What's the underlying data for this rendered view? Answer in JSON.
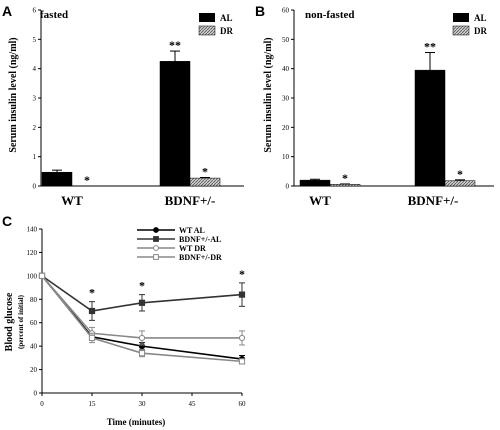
{
  "panels": {
    "a": "A",
    "b": "B",
    "c": "C"
  },
  "chart_data": [
    {
      "type": "bar",
      "panel": "A",
      "condition": "fasted",
      "ylabel": "Serum insulin level (ng/ml)",
      "ylim": [
        0,
        6
      ],
      "yticks": [
        0,
        1,
        2,
        3,
        4,
        5,
        6
      ],
      "categories": [
        "WT",
        "BDNF+/-"
      ],
      "series": [
        {
          "name": "AL",
          "values": [
            0.47,
            4.25
          ],
          "errors": [
            0.07,
            0.35
          ],
          "color": "#000000"
        },
        {
          "name": "DR",
          "values": [
            0,
            0.27
          ],
          "errors": [
            0,
            0.02
          ],
          "color": "#888888"
        }
      ],
      "annotations": [
        {
          "text": "*",
          "category": 0,
          "series": 1
        },
        {
          "text": "**",
          "category": 1,
          "series": 0
        },
        {
          "text": "*",
          "category": 1,
          "series": 1
        }
      ],
      "legend": "top-right"
    },
    {
      "type": "bar",
      "panel": "B",
      "condition": "non-fasted",
      "ylabel": "Serum insulin level (ng/ml)",
      "ylim": [
        0,
        60
      ],
      "yticks": [
        0,
        10,
        20,
        30,
        40,
        50,
        60
      ],
      "categories": [
        "WT",
        "BDNF+/-"
      ],
      "series": [
        {
          "name": "AL",
          "values": [
            2.0,
            39.5
          ],
          "errors": [
            0.3,
            6.0
          ],
          "color": "#000000"
        },
        {
          "name": "DR",
          "values": [
            0.6,
            1.8
          ],
          "errors": [
            0.1,
            0.3
          ],
          "color": "#888888"
        }
      ],
      "annotations": [
        {
          "text": "*",
          "category": 0,
          "series": 1
        },
        {
          "text": "**",
          "category": 1,
          "series": 0
        },
        {
          "text": "*",
          "category": 1,
          "series": 1
        }
      ],
      "legend": "top-right"
    },
    {
      "type": "line",
      "panel": "C",
      "xlabel": "Time (minutes)",
      "ylabel": "Blood glucose",
      "ylabel_sub": "(percent of initial)",
      "xlim": [
        0,
        60
      ],
      "ylim": [
        0,
        140
      ],
      "xticks": [
        0,
        15,
        30,
        45,
        60
      ],
      "yticks": [
        0,
        20,
        40,
        60,
        80,
        100,
        120,
        140
      ],
      "x": [
        0,
        15,
        30,
        60
      ],
      "series": [
        {
          "name": "WT AL",
          "values": [
            100,
            48,
            40,
            29
          ],
          "errors": [
            0,
            3,
            3,
            3
          ],
          "marker": "filled-circle",
          "color": "#000000"
        },
        {
          "name": "BDNF+/-AL",
          "values": [
            100,
            70,
            77,
            84
          ],
          "errors": [
            0,
            8,
            7,
            10
          ],
          "marker": "filled-square",
          "color": "#333333"
        },
        {
          "name": "WT DR",
          "values": [
            100,
            51,
            47,
            47
          ],
          "errors": [
            0,
            5,
            6,
            6
          ],
          "marker": "open-circle",
          "color": "#888888"
        },
        {
          "name": "BDNF+/-DR",
          "values": [
            100,
            47,
            34,
            27
          ],
          "errors": [
            0,
            4,
            3,
            2
          ],
          "marker": "open-square",
          "color": "#888888"
        }
      ],
      "annotations": [
        {
          "text": "*",
          "x": 15
        },
        {
          "text": "*",
          "x": 30
        },
        {
          "text": "*",
          "x": 60
        }
      ],
      "legend": "top-right"
    }
  ]
}
